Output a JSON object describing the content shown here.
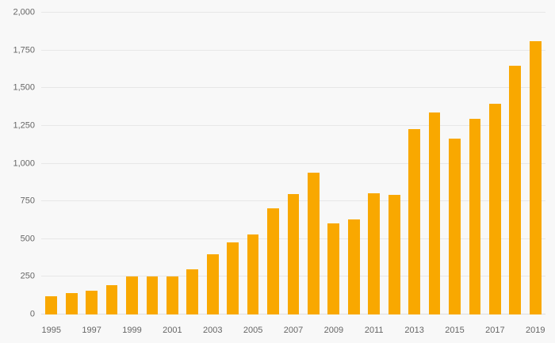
{
  "chart_data": {
    "type": "bar",
    "title": "",
    "xlabel": "",
    "ylabel": "",
    "ylim": [
      0,
      2000
    ],
    "ytick_values": [
      0,
      250,
      500,
      750,
      1000,
      1250,
      1500,
      1750,
      2000
    ],
    "ytick_labels": [
      "0",
      "250",
      "500",
      "750",
      "1,000",
      "1,250",
      "1,500",
      "1,750",
      "2,000"
    ],
    "categories": [
      "1995",
      "1996",
      "1997",
      "1998",
      "1999",
      "2000",
      "2001",
      "2002",
      "2003",
      "2004",
      "2005",
      "2006",
      "2007",
      "2008",
      "2009",
      "2010",
      "2011",
      "2012",
      "2013",
      "2014",
      "2015",
      "2016",
      "2017",
      "2018",
      "2019"
    ],
    "values": [
      120,
      140,
      160,
      195,
      250,
      250,
      250,
      300,
      400,
      480,
      530,
      705,
      800,
      940,
      605,
      630,
      805,
      795,
      1230,
      1340,
      1165,
      1295,
      1395,
      1650,
      1810
    ],
    "visible_x_tick_labels": [
      "1995",
      "1997",
      "1999",
      "2001",
      "2003",
      "2005",
      "2007",
      "2009",
      "2011",
      "2013",
      "2015",
      "2017",
      "2019"
    ],
    "grid": true,
    "legend": "none",
    "bar_color": "#f9a800",
    "background_color": "#f8f8f8",
    "gridline_color": "#e7e7e7",
    "axis_text_color": "#666666"
  }
}
